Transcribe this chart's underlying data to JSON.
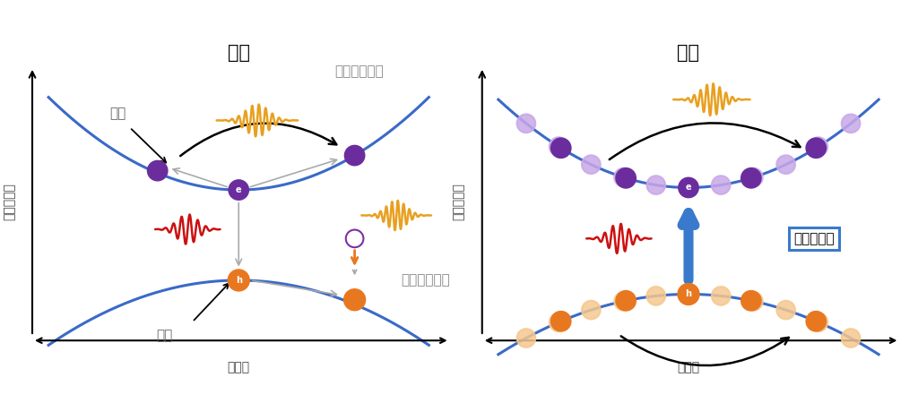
{
  "title_left": "従来",
  "title_right": "今回",
  "ylabel": "エネルギー",
  "xlabel": "運動量",
  "label_electron": "電子",
  "label_hole": "正孔",
  "label_intraband": "バンド内電流",
  "label_interband": "バンド間分極",
  "label_nonlinear": "非線形励起",
  "bg_color": "#ffffff",
  "band_color": "#3a6ac8",
  "electron_color": "#6b2d9e",
  "electron_light_color": "#c8a8e8",
  "hole_color": "#e87820",
  "hole_light_color": "#f5c890",
  "red_wave_color": "#cc1111",
  "orange_wave_color": "#e8a020",
  "blue_arrow_color": "#3a7acc",
  "purple_arrow_color": "#7b2fa8",
  "gray_arrow_color": "#aaaaaa",
  "black_arrow_color": "#222222"
}
